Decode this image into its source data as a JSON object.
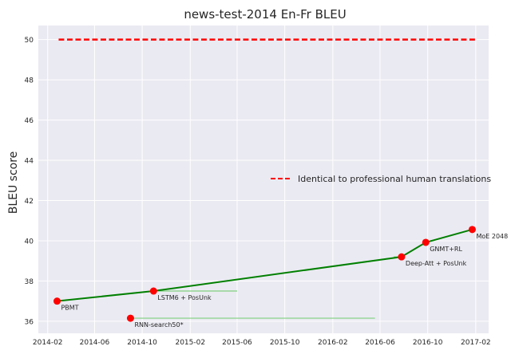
{
  "chart_data": {
    "type": "line",
    "title": "news-test-2014 En-Fr BLEU",
    "xlabel": "",
    "ylabel": "BLEU score",
    "ylim": [
      35.4,
      50.7
    ],
    "xlim": [
      "2014-01-08",
      "2017-03-06"
    ],
    "y_ticks": [
      36,
      38,
      40,
      42,
      44,
      46,
      48,
      50
    ],
    "x_ticks": [
      "2014-02",
      "2014-06",
      "2014-10",
      "2015-02",
      "2015-06",
      "2015-10",
      "2016-02",
      "2016-06",
      "2016-10",
      "2017-02"
    ],
    "grid": true,
    "legend_position": "center-right",
    "reference_line": {
      "name": "Identical to professional human translations",
      "value": 50,
      "x_start": "2014-03-01",
      "x_end": "2017-01-30",
      "color": "#ff0000",
      "style": "dashed"
    },
    "series": [
      {
        "color": "#008000",
        "points": [
          {
            "label": "PBMT",
            "x": "2014-02-25",
            "y": 37.0
          },
          {
            "label": "LSTM6 + PosUnk",
            "x": "2014-10-30",
            "y": 37.5
          },
          {
            "label": "Deep-Att + PosUnk",
            "x": "2016-07-26",
            "y": 39.2
          },
          {
            "label": "GNMT+RL",
            "x": "2016-09-26",
            "y": 39.92
          },
          {
            "label": "MoE 2048",
            "x": "2017-01-23",
            "y": 40.56
          }
        ]
      }
    ],
    "other_points": [
      {
        "label": "RNN-search50*",
        "x": "2014-09-01",
        "y": 36.15
      }
    ],
    "spans": [
      {
        "y": 37.5,
        "x_start": "2014-10-30",
        "x_end": "2015-06-01"
      },
      {
        "y": 36.15,
        "x_start": "2014-09-01",
        "x_end": "2016-05-19"
      },
      {
        "y": 39.2,
        "x_start": "2016-07-06",
        "x_end": "2016-07-26"
      }
    ],
    "marker_color": "#ff0000",
    "span_color": "#80d080"
  }
}
